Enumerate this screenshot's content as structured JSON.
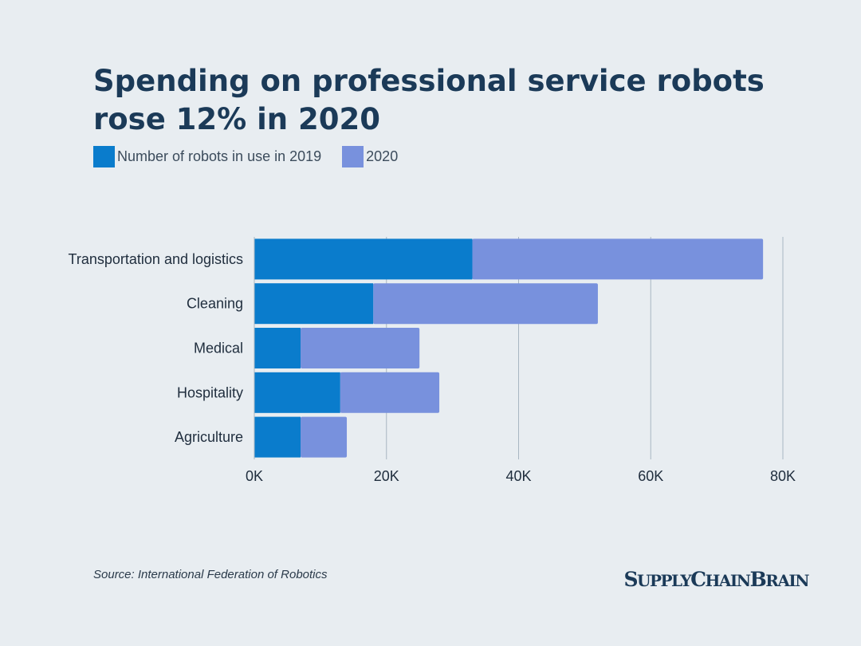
{
  "title": "Spending on professional service robots rose 12% in 2020",
  "source": "Source: International Federation of Robotics",
  "logo": {
    "text": "SupplyChainBrain",
    "parts": [
      "S",
      "UPPLY",
      "C",
      "HAIN",
      "B",
      "RAIN"
    ]
  },
  "colors": {
    "series_2019": "#0a7ccc",
    "series_2020": "#7891dd",
    "grid": "#a9b6c2",
    "text": "#1b3a58"
  },
  "chart_data": {
    "type": "bar",
    "orientation": "horizontal",
    "stacked": true,
    "categories": [
      "Transportation and logistics",
      "Cleaning",
      "Medical",
      "Hospitality",
      "Agriculture"
    ],
    "series": [
      {
        "name": "Number of robots in use in 2019",
        "values": [
          33000,
          18000,
          7000,
          13000,
          7000
        ]
      },
      {
        "name": "2020",
        "values": [
          44000,
          34000,
          18000,
          15000,
          7000
        ]
      }
    ],
    "xlim": [
      0,
      80000
    ],
    "ticks": [
      0,
      20000,
      40000,
      60000,
      80000
    ],
    "tick_labels": [
      "0K",
      "20K",
      "40K",
      "60K",
      "80K"
    ],
    "grid": true,
    "legend_position": "top-left"
  }
}
